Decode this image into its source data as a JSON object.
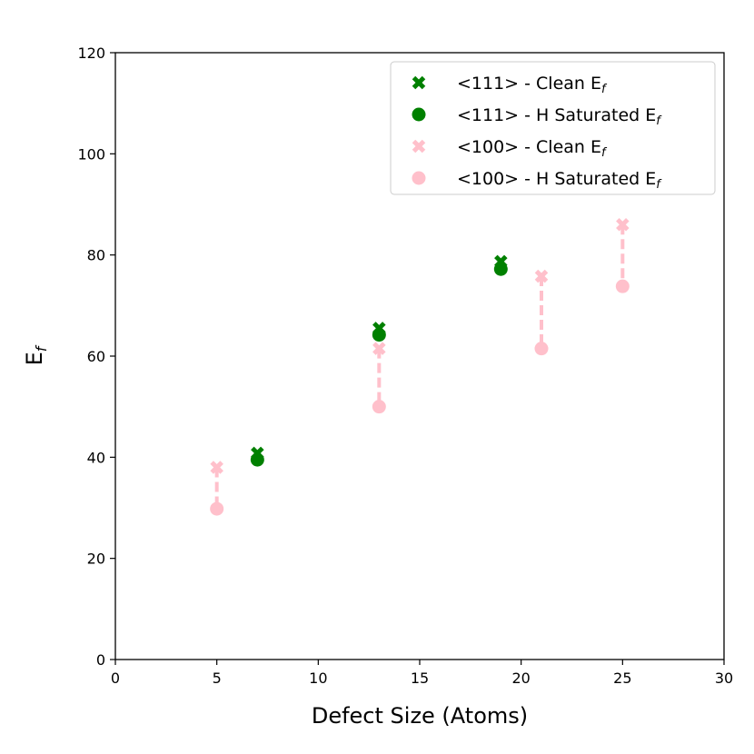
{
  "chart_data": {
    "type": "scatter",
    "xlabel": "Defect Size (Atoms)",
    "ylabel": "E",
    "ylabel_sub": "f",
    "xlim": [
      0,
      30
    ],
    "ylim": [
      0,
      120
    ],
    "xticks": [
      0,
      5,
      10,
      15,
      20,
      25,
      30
    ],
    "yticks": [
      0,
      20,
      40,
      60,
      80,
      100,
      120
    ],
    "grid": false,
    "legend_position": "top-right",
    "series": [
      {
        "name": "<111> - Clean E",
        "name_sub": "f",
        "marker": "x",
        "color": "#008000",
        "points": [
          {
            "x": 7,
            "y": 40.8
          },
          {
            "x": 13,
            "y": 65.5
          },
          {
            "x": 19,
            "y": 78.7
          }
        ]
      },
      {
        "name": "<111> - H Saturated E",
        "name_sub": "f",
        "marker": "o",
        "color": "#008000",
        "points": [
          {
            "x": 7,
            "y": 39.5
          },
          {
            "x": 13,
            "y": 64.2
          },
          {
            "x": 19,
            "y": 77.2
          }
        ]
      },
      {
        "name": "<100> - Clean E",
        "name_sub": "f",
        "marker": "x",
        "color": "#ffc0cb",
        "points": [
          {
            "x": 5,
            "y": 38.0
          },
          {
            "x": 13,
            "y": 61.5
          },
          {
            "x": 21,
            "y": 75.8
          },
          {
            "x": 25,
            "y": 86.0
          }
        ]
      },
      {
        "name": "<100> - H Saturated E",
        "name_sub": "f",
        "marker": "o",
        "color": "#ffc0cb",
        "points": [
          {
            "x": 5,
            "y": 29.8
          },
          {
            "x": 13,
            "y": 50.0
          },
          {
            "x": 21,
            "y": 61.5
          },
          {
            "x": 25,
            "y": 73.8
          }
        ]
      }
    ],
    "connectors": [
      {
        "x": 7,
        "y1": 40.8,
        "y2": 39.5,
        "color": "#008000"
      },
      {
        "x": 13,
        "y1": 65.5,
        "y2": 64.2,
        "color": "#008000"
      },
      {
        "x": 19,
        "y1": 78.7,
        "y2": 77.2,
        "color": "#008000"
      },
      {
        "x": 5,
        "y1": 38.0,
        "y2": 29.8,
        "color": "#ffc0cb"
      },
      {
        "x": 13,
        "y1": 61.5,
        "y2": 50.0,
        "color": "#ffc0cb"
      },
      {
        "x": 21,
        "y1": 75.8,
        "y2": 61.5,
        "color": "#ffc0cb"
      },
      {
        "x": 25,
        "y1": 86.0,
        "y2": 73.8,
        "color": "#ffc0cb"
      }
    ]
  }
}
